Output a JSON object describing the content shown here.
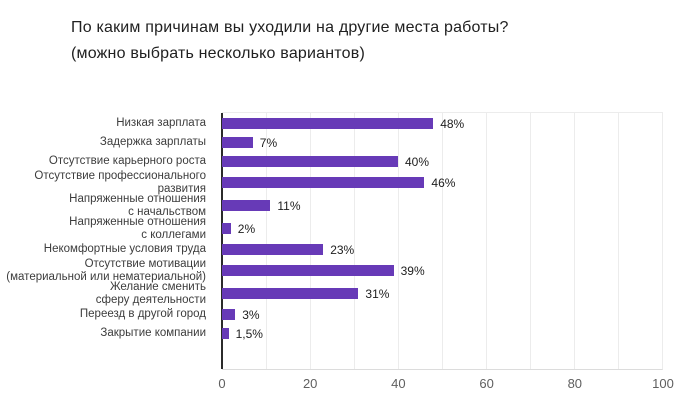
{
  "chart_data": {
    "type": "bar",
    "orientation": "horizontal",
    "title": "По каким причинам вы уходили на другие места работы?",
    "subtitle": "(можно выбрать несколько вариантов)",
    "categories": [
      "Низкая зарплата",
      "Задержка зарплаты",
      "Отсутствие карьерного роста",
      "Отсутствие профессионального\nразвития",
      "Напряженные отношения\nс начальством",
      "Напряженные отношения\nс коллегами",
      "Некомфортные условия труда",
      "Отсутствие мотивации\n(материальной или нематериальной)",
      "Желание сменить\nсферу деятельности",
      "Переезд в другой город",
      "Закрытие компании"
    ],
    "values": [
      48,
      7,
      40,
      46,
      11,
      2,
      23,
      39,
      31,
      3,
      1.5
    ],
    "value_labels": [
      "48%",
      "7%",
      "40%",
      "46%",
      "11%",
      "2%",
      "23%",
      "39%",
      "31%",
      "3%",
      "1,5%"
    ],
    "xlabel": "",
    "ylabel": "",
    "xlim": [
      0,
      100
    ],
    "x_ticks": [
      0,
      20,
      40,
      60,
      80,
      100
    ],
    "grid": "vertical minor gridlines every 10, labeled every 20",
    "legend": "none",
    "colors": {
      "bar": "#673ab7",
      "title": "#212121",
      "label": "#3c3c3c",
      "tick": "#5f5f5f",
      "grid": "#ececec",
      "axis": "#2b2b2b"
    }
  }
}
